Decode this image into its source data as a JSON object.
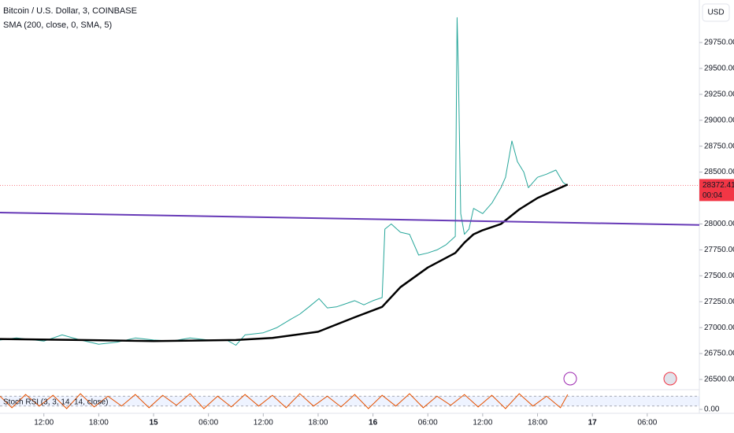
{
  "chart_data": {
    "type": "line",
    "title": "Bitcoin / U.S. Dollar, 3, COINBASE",
    "indicator_label": "SMA (200, close, 0, SMA, 5)",
    "currency": "USD",
    "last_price_label": "28372.41",
    "countdown": "00:04",
    "xlim": [
      -16.8,
      59.7
    ],
    "xticks": [
      {
        "value": -12,
        "label": "12:00"
      },
      {
        "value": -6,
        "label": "18:00"
      },
      {
        "value": 0,
        "label": "15"
      },
      {
        "value": 6,
        "label": "06:00"
      },
      {
        "value": 12,
        "label": "12:00"
      },
      {
        "value": 18,
        "label": "18:00"
      },
      {
        "value": 24,
        "label": "16"
      },
      {
        "value": 30,
        "label": "06:00"
      },
      {
        "value": 36,
        "label": "12:00"
      },
      {
        "value": 42,
        "label": "18:00"
      },
      {
        "value": 48,
        "label": "17"
      },
      {
        "value": 54,
        "label": "06:00"
      }
    ],
    "ylim": [
      26424,
      30160
    ],
    "yticks": [
      {
        "value": 29750,
        "label": "29750.00"
      },
      {
        "value": 29500,
        "label": "29500.00"
      },
      {
        "value": 29250,
        "label": "29250.00"
      },
      {
        "value": 29000,
        "label": "29000.00"
      },
      {
        "value": 28750,
        "label": "28750.00"
      },
      {
        "value": 28500,
        "label": "28500.00"
      },
      {
        "value": 28000,
        "label": "28000.00"
      },
      {
        "value": 27750,
        "label": "27750.00"
      },
      {
        "value": 27500,
        "label": "27500.00"
      },
      {
        "value": 27250,
        "label": "27250.00"
      },
      {
        "value": 27000,
        "label": "27000.00"
      },
      {
        "value": 26750,
        "label": "26750.00"
      },
      {
        "value": 26500,
        "label": "26500.00"
      }
    ],
    "last_price": 28372.41,
    "series": [
      {
        "name": "BTCUSD",
        "color": "#26a69a",
        "width": 1,
        "x": [
          -16.8,
          -15,
          -12,
          -10,
          -8,
          -6,
          -4,
          -2,
          0,
          2,
          4,
          6,
          8,
          9,
          10,
          12,
          13.5,
          15,
          16,
          17,
          18.1,
          19,
          20,
          21,
          22,
          23,
          24,
          25,
          25.3,
          26,
          27,
          28,
          29,
          30,
          31,
          32,
          33,
          33.2,
          33.35,
          33.6,
          34,
          34.5,
          35,
          36,
          37,
          38,
          38.5,
          39.2,
          39.8,
          40.5,
          41,
          42,
          43,
          44,
          44.8,
          45.3
        ],
        "values": [
          26880,
          26900,
          26870,
          26930,
          26880,
          26840,
          26860,
          26900,
          26880,
          26870,
          26900,
          26880,
          26880,
          26830,
          26930,
          26950,
          27000,
          27080,
          27130,
          27200,
          27280,
          27190,
          27200,
          27230,
          27260,
          27220,
          27260,
          27290,
          27950,
          28000,
          27920,
          27900,
          27700,
          27720,
          27750,
          27800,
          27880,
          29990,
          29450,
          28100,
          27900,
          27950,
          28150,
          28100,
          28200,
          28350,
          28450,
          28800,
          28600,
          28500,
          28350,
          28450,
          28480,
          28520,
          28400,
          28372
        ]
      },
      {
        "name": "SMA",
        "color": "#000000",
        "width": 2.5,
        "x": [
          -16.8,
          -8,
          0,
          9,
          13,
          18,
          22,
          25,
          27,
          30,
          33,
          34,
          35,
          36,
          38,
          40,
          42,
          44,
          45.3
        ],
        "values": [
          26890,
          26880,
          26870,
          26880,
          26900,
          26960,
          27100,
          27200,
          27390,
          27580,
          27720,
          27820,
          27900,
          27940,
          28000,
          28140,
          28250,
          28330,
          28380
        ]
      },
      {
        "name": "Trend line",
        "color": "#673ab7",
        "width": 2,
        "x": [
          -16.8,
          59.7
        ],
        "values": [
          28110,
          27990
        ]
      }
    ],
    "stoch": {
      "label": "Stoch RSI (3, 3, 14, 14, close)",
      "ylim": [
        0,
        100
      ],
      "yticks": [
        {
          "value": 0,
          "label": "0.00"
        }
      ],
      "color": "#e65100",
      "k_color": "#2962ff",
      "x": [
        -16.8,
        -15.5,
        -14,
        -12.5,
        -11,
        -9.5,
        -8,
        -6.5,
        -5,
        -3.5,
        -2,
        -0.5,
        1,
        2.5,
        4,
        5.5,
        7,
        8.5,
        10,
        11.5,
        13,
        14.5,
        16,
        17.5,
        19,
        20.5,
        22,
        23.5,
        25,
        26.5,
        28,
        29.5,
        31,
        32.5,
        34,
        35.5,
        37,
        38.5,
        40,
        41.5,
        43,
        44.5,
        45.3
      ],
      "values": [
        80,
        10,
        90,
        20,
        85,
        5,
        95,
        15,
        80,
        20,
        90,
        10,
        85,
        25,
        95,
        5,
        80,
        15,
        90,
        20,
        85,
        10,
        95,
        20,
        80,
        15,
        90,
        5,
        85,
        20,
        95,
        10,
        80,
        25,
        90,
        15,
        85,
        5,
        95,
        20,
        80,
        10,
        90
      ]
    }
  }
}
